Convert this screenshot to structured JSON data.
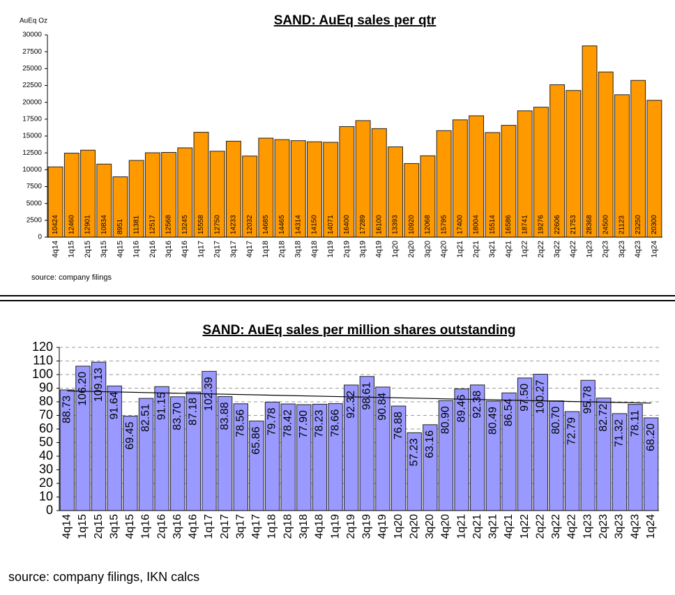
{
  "chart_data": [
    {
      "type": "bar",
      "title": "SAND: AuEq sales per qtr",
      "y_label": "AuEq Oz",
      "source": "source: company filings",
      "categories": [
        "4q14",
        "1q15",
        "2q15",
        "3q15",
        "4q15",
        "1q16",
        "2q16",
        "3q16",
        "4q16",
        "1q17",
        "2q17",
        "3q17",
        "4q17",
        "1q18",
        "2q18",
        "3q18",
        "4q18",
        "1q19",
        "2q19",
        "3q19",
        "4q19",
        "1q20",
        "2q20",
        "3q20",
        "4q20",
        "1q21",
        "2q21",
        "3q21",
        "4q21",
        "1q22",
        "2q22",
        "3q22",
        "4q22",
        "1q23",
        "2q23",
        "3q23",
        "4q23",
        "1q24"
      ],
      "values": [
        10424,
        12460,
        12901,
        10834,
        8951,
        11381,
        12517,
        12568,
        13245,
        15558,
        12750,
        14233,
        12032,
        14685,
        14465,
        14314,
        14150,
        14071,
        16400,
        17289,
        16100,
        13393,
        10920,
        12068,
        15795,
        17400,
        18004,
        15514,
        16586,
        18741,
        19276,
        22606,
        21753,
        28368,
        24500,
        21123,
        23250,
        20300
      ],
      "color": "#ff9900",
      "ylim": [
        0,
        30000
      ],
      "yticks": [
        0,
        2500,
        5000,
        7500,
        10000,
        12500,
        15000,
        17500,
        20000,
        22500,
        25000,
        27500,
        30000
      ],
      "grid": false
    },
    {
      "type": "bar",
      "title": "SAND: AuEq sales per million shares outstanding",
      "source": "source: company filings, IKN calcs",
      "categories": [
        "4q14",
        "1q15",
        "2q15",
        "3q15",
        "4q15",
        "1q16",
        "2q16",
        "3q16",
        "4q16",
        "1q17",
        "2q17",
        "3q17",
        "4q17",
        "1q18",
        "2q18",
        "3q18",
        "4q18",
        "1q19",
        "2q19",
        "3q19",
        "4q19",
        "1q20",
        "2q20",
        "3q20",
        "4q20",
        "1q21",
        "2q21",
        "3q21",
        "4q21",
        "1q22",
        "2q22",
        "3q22",
        "4q22",
        "1q23",
        "2q23",
        "3q23",
        "4q23",
        "1q24"
      ],
      "values": [
        88.73,
        106.2,
        109.13,
        91.64,
        69.45,
        82.51,
        91.15,
        83.7,
        87.18,
        102.39,
        83.88,
        78.56,
        65.86,
        79.78,
        78.42,
        77.9,
        78.23,
        78.66,
        92.32,
        98.61,
        90.84,
        76.88,
        57.23,
        63.16,
        80.9,
        89.46,
        92.38,
        80.49,
        86.54,
        97.5,
        100.27,
        80.7,
        72.79,
        95.78,
        82.72,
        71.32,
        78.11,
        68.2
      ],
      "value_labels": [
        "88.73",
        "106.20",
        "109.13",
        "91.64",
        "69.45",
        "82.51",
        "91.15",
        "83.70",
        "87.18",
        "102.39",
        "83.88",
        "78.56",
        "65.86",
        "79.78",
        "78.42",
        "77.90",
        "78.23",
        "78.66",
        "92.32",
        "98.61",
        "90.84",
        "76.88",
        "57.23",
        "63.16",
        "80.90",
        "89.46",
        "92.38",
        "80.49",
        "86.54",
        "97.50",
        "100.27",
        "80.70",
        "72.79",
        "95.78",
        "82.72",
        "71.32",
        "78.11",
        "68.20"
      ],
      "trendline": [
        88,
        79
      ],
      "color": "#9999ff",
      "ylim": [
        0,
        120
      ],
      "yticks": [
        0,
        10,
        20,
        30,
        40,
        50,
        60,
        70,
        80,
        90,
        100,
        110,
        120
      ],
      "grid": true
    }
  ]
}
